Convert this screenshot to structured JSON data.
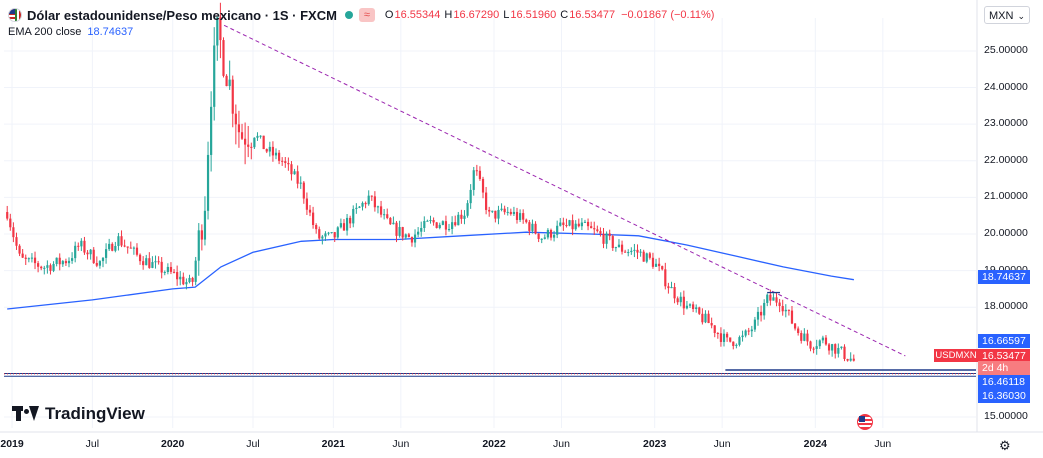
{
  "header": {
    "title": "Dólar estadounidense/Peso mexicano · 1S · FXCM",
    "o_label": "O",
    "o_value": "16.55344",
    "h_label": "H",
    "h_value": "16.67290",
    "l_label": "L",
    "l_value": "16.51960",
    "c_label": "C",
    "c_value": "16.53477",
    "change": "−0.01867 (−0.11%)",
    "alert_glyph": "≈"
  },
  "indicator": {
    "label": "EMA 200 close",
    "value": "18.74637"
  },
  "currency": {
    "label": "MXN",
    "chevron": "⌄"
  },
  "branding": {
    "name": "TradingView"
  },
  "price_labels": {
    "ema": "18.74637",
    "support_top": "16.66597",
    "last": "16.53477",
    "countdown": "2d 4h",
    "support_mid": "16.46118",
    "support_low": "16.36030",
    "symbol": "USDMXN"
  },
  "colors": {
    "up": "#26a69a",
    "down": "#f23645",
    "ema": "#2962ff",
    "trendline": "#9c27b0",
    "support": "#1e3a8a",
    "grid": "#f0f3fa"
  },
  "chart_data": {
    "type": "candlestick",
    "symbol": "USDMXN",
    "timeframe": "1S",
    "y_axis": {
      "ticks": [
        "25.00000",
        "24.00000",
        "23.00000",
        "22.00000",
        "21.00000",
        "20.00000",
        "19.00000",
        "18.00000",
        "15.00000"
      ],
      "range": [
        14.7,
        25.9
      ]
    },
    "x_axis": {
      "ticks": [
        {
          "label": "2019",
          "t": 2019.0
        },
        {
          "label": "Jul",
          "t": 2019.5
        },
        {
          "label": "2020",
          "t": 2020.0
        },
        {
          "label": "Jul",
          "t": 2020.5
        },
        {
          "label": "2021",
          "t": 2021.0
        },
        {
          "label": "Jun",
          "t": 2021.42
        },
        {
          "label": "2022",
          "t": 2022.0
        },
        {
          "label": "Jun",
          "t": 2022.42
        },
        {
          "label": "2023",
          "t": 2023.0
        },
        {
          "label": "Jun",
          "t": 2023.42
        },
        {
          "label": "2024",
          "t": 2024.0
        },
        {
          "label": "Jun",
          "t": 2024.42
        }
      ],
      "range": [
        2018.95,
        2025.0
      ]
    },
    "price_path": [
      [
        2018.97,
        20.6
      ],
      [
        2019.05,
        19.3
      ],
      [
        2019.2,
        19.1
      ],
      [
        2019.35,
        19.3
      ],
      [
        2019.42,
        19.7
      ],
      [
        2019.55,
        19.2
      ],
      [
        2019.65,
        19.9
      ],
      [
        2019.78,
        19.4
      ],
      [
        2019.9,
        19.1
      ],
      [
        2020.0,
        18.9
      ],
      [
        2020.12,
        18.6
      ],
      [
        2020.2,
        20.9
      ],
      [
        2020.24,
        24.0
      ],
      [
        2020.28,
        25.5
      ],
      [
        2020.35,
        24.2
      ],
      [
        2020.42,
        22.7
      ],
      [
        2020.5,
        22.8
      ],
      [
        2020.58,
        22.3
      ],
      [
        2020.68,
        22.0
      ],
      [
        2020.8,
        21.3
      ],
      [
        2020.9,
        19.9
      ],
      [
        2021.0,
        19.9
      ],
      [
        2021.12,
        20.5
      ],
      [
        2021.22,
        21.0
      ],
      [
        2021.35,
        20.2
      ],
      [
        2021.48,
        19.9
      ],
      [
        2021.6,
        20.3
      ],
      [
        2021.72,
        20.3
      ],
      [
        2021.82,
        20.6
      ],
      [
        2021.88,
        21.8
      ],
      [
        2021.97,
        20.5
      ],
      [
        2022.1,
        20.6
      ],
      [
        2022.2,
        20.3
      ],
      [
        2022.3,
        19.9
      ],
      [
        2022.42,
        20.2
      ],
      [
        2022.55,
        20.2
      ],
      [
        2022.65,
        20.0
      ],
      [
        2022.78,
        19.6
      ],
      [
        2022.9,
        19.5
      ],
      [
        2023.0,
        19.2
      ],
      [
        2023.1,
        18.5
      ],
      [
        2023.2,
        18.0
      ],
      [
        2023.33,
        17.6
      ],
      [
        2023.45,
        17.05
      ],
      [
        2023.55,
        17.15
      ],
      [
        2023.62,
        17.5
      ],
      [
        2023.7,
        18.2
      ],
      [
        2023.78,
        18.2
      ],
      [
        2023.88,
        17.4
      ],
      [
        2023.97,
        17.0
      ],
      [
        2024.05,
        17.1
      ],
      [
        2024.15,
        16.8
      ],
      [
        2024.24,
        16.53
      ]
    ],
    "ema200": [
      [
        2018.97,
        17.95
      ],
      [
        2019.5,
        18.2
      ],
      [
        2020.0,
        18.5
      ],
      [
        2020.14,
        18.55
      ],
      [
        2020.3,
        19.1
      ],
      [
        2020.5,
        19.5
      ],
      [
        2020.8,
        19.8
      ],
      [
        2021.0,
        19.85
      ],
      [
        2021.4,
        19.85
      ],
      [
        2021.8,
        19.95
      ],
      [
        2022.2,
        20.05
      ],
      [
        2022.6,
        20.0
      ],
      [
        2022.9,
        19.95
      ],
      [
        2023.2,
        19.7
      ],
      [
        2023.5,
        19.4
      ],
      [
        2023.8,
        19.1
      ],
      [
        2024.1,
        18.85
      ],
      [
        2024.24,
        18.75
      ]
    ],
    "trendline": [
      [
        2020.32,
        25.7
      ],
      [
        2024.56,
        16.67
      ]
    ],
    "support_lines": [
      16.66597,
      16.46118,
      16.3603
    ],
    "last_price": 16.53477,
    "ema_last": 18.74637
  }
}
